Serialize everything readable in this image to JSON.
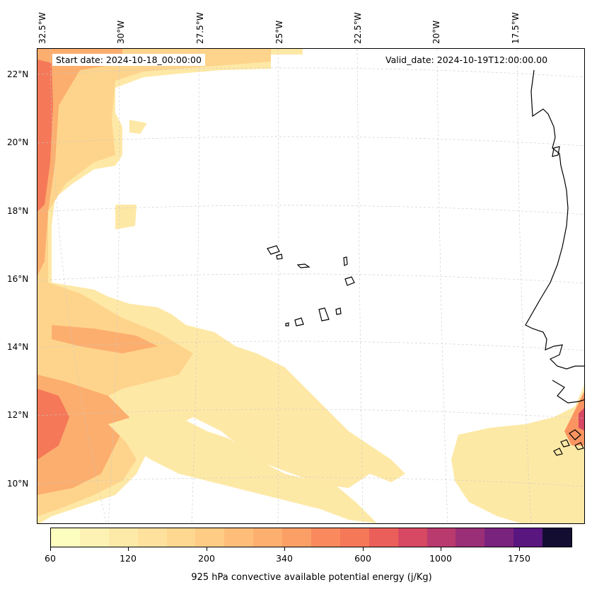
{
  "map": {
    "start_date": "Start date: 2024-10-18_00:00:00",
    "valid_date": "Valid_date: 2024-10-19T12:00:00.00",
    "lon_labels": [
      "32.5°W",
      "30°W",
      "27.5°W",
      "25°W",
      "22.5°W",
      "20°W",
      "17.5°W"
    ],
    "lat_labels": [
      "22°N",
      "20°N",
      "18°N",
      "16°N",
      "14°N",
      "12°N",
      "10°N"
    ],
    "extent": {
      "lon_min": -32.5,
      "lon_max": -16.3,
      "lat_min": 8.9,
      "lat_max": 22.8
    },
    "gridlines": true,
    "coastline_color": "#000000"
  },
  "colorbar": {
    "title": "925 hPa convective available potential energy (j/Kg)",
    "tick_labels": [
      "60",
      "120",
      "200",
      "340",
      "600",
      "1000",
      "1750"
    ],
    "colors": [
      "#fcfdbf",
      "#fdf2b4",
      "#feeaa8",
      "#fee19c",
      "#fed890",
      "#fecc84",
      "#febe7a",
      "#fdaf70",
      "#fc9f67",
      "#fa8a5e",
      "#f57858",
      "#eb5f5a",
      "#d74862",
      "#b93a6e",
      "#9a2f78",
      "#7a237e",
      "#5a167f",
      "#120d31"
    ]
  }
}
